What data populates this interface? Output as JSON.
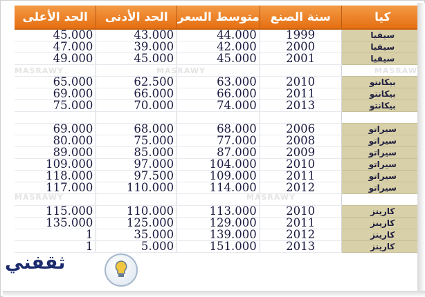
{
  "headers": [
    "الحد الأعلى",
    "الحد الأدنى",
    "متوسط السعر",
    "سنة الصنع",
    "كيا"
  ],
  "rows": [
    {
      "max": "45.000",
      "min": "43.000",
      "avg": "44.000",
      "year": "1999",
      "model": "سيفيا"
    },
    {
      "max": "47.000",
      "min": "39.000",
      "avg": "42.000",
      "year": "2000",
      "model": "سيفيا"
    },
    {
      "max": "49.000",
      "min": "45.000",
      "avg": "45.000",
      "year": "2001",
      "model": "سيفيا"
    },
    {
      "max": "",
      "min": "",
      "avg": "",
      "year": "",
      "model": ""
    },
    {
      "max": "65.000",
      "min": "62.500",
      "avg": "63.000",
      "year": "2010",
      "model": "بيكانتو"
    },
    {
      "max": "69.000",
      "min": "66.000",
      "avg": "66.000",
      "year": "2011",
      "model": "بيكانتو"
    },
    {
      "max": "75.000",
      "min": "70.000",
      "avg": "74.000",
      "year": "2013",
      "model": "بيكانتو"
    },
    {
      "max": "",
      "min": "",
      "avg": "",
      "year": "",
      "model": ""
    },
    {
      "max": "69.000",
      "min": "68.000",
      "avg": "68.000",
      "year": "2006",
      "model": "سيراتو"
    },
    {
      "max": "80.000",
      "min": "75.000",
      "avg": "77.000",
      "year": "2008",
      "model": "سيراتو"
    },
    {
      "max": "89.000",
      "min": "85.000",
      "avg": "87.000",
      "year": "2009",
      "model": "سيراتو"
    },
    {
      "max": "109.000",
      "min": "97.000",
      "avg": "104.000",
      "year": "2010",
      "model": "سيراتو"
    },
    {
      "max": "118.000",
      "min": "97.500",
      "avg": "109.000",
      "year": "2011",
      "model": "سيراتو"
    },
    {
      "max": "117.000",
      "min": "110.000",
      "avg": "114.000",
      "year": "2012",
      "model": "سيراتو"
    },
    {
      "max": "",
      "min": "",
      "avg": "",
      "year": "",
      "model": ""
    },
    {
      "max": "115.000",
      "min": "110.000",
      "avg": "113.000",
      "year": "2010",
      "model": "كارينز"
    },
    {
      "max": "135.000",
      "min": "125.000",
      "avg": "129.000",
      "year": "2011",
      "model": "كارينز"
    },
    {
      "max": "1",
      "min": "35.000",
      "avg": "139.000",
      "year": "2012",
      "model": "كارينز"
    },
    {
      "max": "1",
      "min": "5.000",
      "avg": "151.000",
      "year": "2013",
      "model": "كارينز"
    }
  ],
  "watermark": "MASRAWY",
  "logo_text": "ثقفني",
  "colors": {
    "header": "#e97a20",
    "model_cell": "#d8d0a8",
    "text": "#1a1a40"
  }
}
